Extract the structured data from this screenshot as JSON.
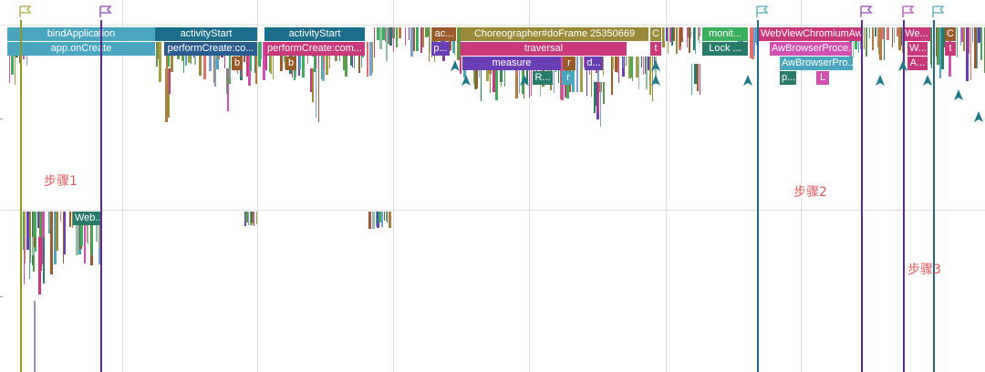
{
  "trace": {
    "colors": {
      "teal": "#4aa6be",
      "darkBlue": "#1c6e8c",
      "navy": "#2b5c8e",
      "magenta": "#c8387a",
      "brown": "#9a5b2c",
      "purple": "#6a3fb5",
      "olive": "#9a8a3a",
      "green": "#3aaf5c",
      "darkTeal": "#2a7a6a",
      "pink": "#d050b0",
      "flagOlive": "#b8b860",
      "flagPurple": "#a060c0",
      "flagPink": "#c070c0",
      "flagTeal": "#70b8c0",
      "lineOlive": "#8e9b20",
      "linePurple": "#5a2a8a",
      "lineBlue": "#1e6a8c",
      "noteRed": "#e65a5a"
    },
    "slices": [
      {
        "label": "bindApplication",
        "color": "teal"
      },
      {
        "label": "app.onCreate",
        "color": "teal"
      },
      {
        "label": "activityStart",
        "color": "darkBlue"
      },
      {
        "label": "performCreate:co...",
        "color": "navy"
      },
      {
        "label": "b",
        "color": "brown"
      },
      {
        "label": "activityStart",
        "color": "darkBlue"
      },
      {
        "label": "performCreate:com...",
        "color": "magenta"
      },
      {
        "label": "b",
        "color": "brown"
      },
      {
        "label": "ac...",
        "color": "brown"
      },
      {
        "label": "p...",
        "color": "purple"
      },
      {
        "label": "Choreographer#doFrame 25350669",
        "color": "olive"
      },
      {
        "label": "traversal",
        "color": "magenta"
      },
      {
        "label": "measure",
        "color": "purple"
      },
      {
        "label": "r",
        "color": "brown"
      },
      {
        "label": "d...",
        "color": "purple"
      },
      {
        "label": "R...",
        "color": "darkTeal"
      },
      {
        "label": "r",
        "color": "teal"
      },
      {
        "label": "C",
        "color": "olive"
      },
      {
        "label": "t",
        "color": "magenta"
      },
      {
        "label": "monit...",
        "color": "green"
      },
      {
        "label": "Lock ...",
        "color": "darkTeal"
      },
      {
        "label": "WebViewChromiumAwI...",
        "color": "magenta"
      },
      {
        "label": "AwBrowserProce...",
        "color": "pink"
      },
      {
        "label": "AwBrowserPro...",
        "color": "teal"
      },
      {
        "label": "p...",
        "color": "darkTeal"
      },
      {
        "label": "L",
        "color": "pink"
      },
      {
        "label": "We...",
        "color": "magenta"
      },
      {
        "label": "W...",
        "color": "magenta"
      },
      {
        "label": "A...",
        "color": "magenta"
      },
      {
        "label": "C",
        "color": "brown"
      },
      {
        "label": "t",
        "color": "magenta"
      },
      {
        "label": "Web...",
        "color": "darkTeal"
      }
    ],
    "annotations": [
      {
        "label": "步骤1"
      },
      {
        "label": "步骤2"
      },
      {
        "label": "步骤3"
      }
    ]
  }
}
